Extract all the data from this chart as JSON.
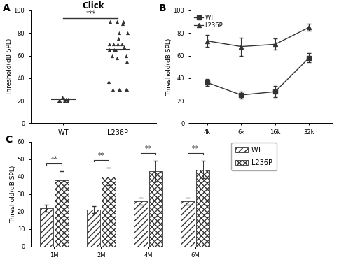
{
  "panel_A": {
    "title": "Click",
    "ylabel": "Threshold(dB SPL)",
    "ylim": [
      0,
      100
    ],
    "yticks": [
      0,
      20,
      40,
      60,
      80,
      100
    ],
    "WT_mean": 21,
    "L236P_mean": 65,
    "WT_points": [
      23,
      21,
      21,
      20,
      20,
      20,
      20,
      20,
      21
    ],
    "L236P_points": [
      90,
      90,
      90,
      88,
      80,
      80,
      75,
      70,
      70,
      70,
      70,
      68,
      65,
      65,
      65,
      60,
      60,
      58,
      55,
      37,
      30,
      30,
      30,
      30,
      30
    ],
    "sig_text": "***",
    "xtick_labels": [
      "WT",
      "L236P"
    ]
  },
  "panel_B": {
    "ylabel": "Threshold(dB SPL)",
    "ylim": [
      0,
      100
    ],
    "yticks": [
      0,
      20,
      40,
      60,
      80,
      100
    ],
    "xlabel_ticks": [
      "4k",
      "6k",
      "16k",
      "32k"
    ],
    "WT_means": [
      36,
      25,
      28,
      58
    ],
    "WT_errors": [
      3,
      3,
      5,
      4
    ],
    "L236P_means": [
      73,
      68,
      70,
      85
    ],
    "L236P_errors": [
      5,
      8,
      5,
      3
    ],
    "legend_WT": "WT",
    "legend_L236P": "L236P"
  },
  "panel_C": {
    "ylabel": "Threshold(dB SPL)",
    "ylim": [
      0,
      60
    ],
    "yticks": [
      0,
      10,
      20,
      30,
      40,
      50,
      60
    ],
    "xlabel_ticks": [
      "1M",
      "2M",
      "4M",
      "6M"
    ],
    "WT_means": [
      22,
      21,
      26,
      26
    ],
    "WT_errors": [
      2,
      2,
      2,
      2
    ],
    "L236P_means": [
      38,
      40,
      43,
      44
    ],
    "L236P_errors": [
      5,
      5,
      6,
      5
    ],
    "sig_text": "**",
    "legend_WT": "WT",
    "legend_L236P": "L236P"
  },
  "color": "#333333",
  "bg_color": "#ffffff"
}
